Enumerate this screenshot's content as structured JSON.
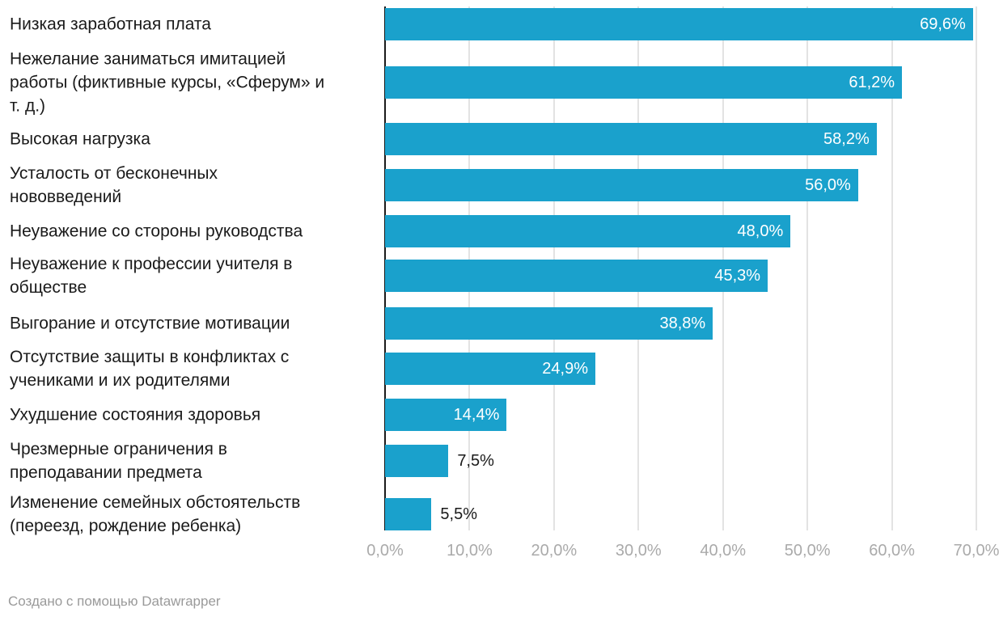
{
  "chart_data": {
    "type": "bar",
    "orientation": "horizontal",
    "categories": [
      [
        "Низкая заработная плата"
      ],
      [
        "Нежелание заниматься имитацией",
        "работы (фиктивные курсы, «Сферум» и",
        "т. д.)"
      ],
      [
        "Высокая нагрузка"
      ],
      [
        "Усталость от бесконечных",
        "нововведений"
      ],
      [
        "Неуважение со стороны руководства"
      ],
      [
        "Неуважение к профессии учителя в",
        "обществе"
      ],
      [
        "Выгорание и отсутствие мотивации"
      ],
      [
        "Отсутствие защиты в конфликтах с",
        "учениками и их родителями"
      ],
      [
        "Ухудшение состояния здоровья"
      ],
      [
        "Чрезмерные ограничения в",
        "преподавании предмета"
      ],
      [
        "Изменение семейных обстоятельств",
        "(переезд, рождение ребенка)"
      ]
    ],
    "values": [
      69.6,
      61.2,
      58.2,
      56.0,
      48.0,
      45.3,
      38.8,
      24.9,
      14.4,
      7.5,
      5.5
    ],
    "value_labels": [
      "69,6%",
      "61,2%",
      "58,2%",
      "56,0%",
      "48,0%",
      "45,3%",
      "38,8%",
      "24,9%",
      "14,4%",
      "7,5%",
      "5,5%"
    ],
    "xlim": [
      0,
      70
    ],
    "xticks": [
      0,
      10,
      20,
      30,
      40,
      50,
      60,
      70
    ],
    "xtick_labels": [
      "0,0%",
      "10,0%",
      "20,0%",
      "30,0%",
      "40,0%",
      "50,0%",
      "60,0%",
      "70,0%"
    ],
    "grid": true,
    "bar_color": "#1aa1cc"
  },
  "footer": "Создано с помощью Datawrapper"
}
